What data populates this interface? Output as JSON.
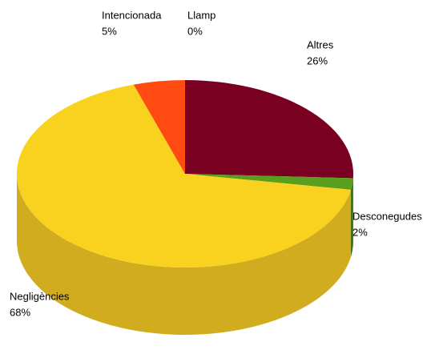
{
  "chart_data": {
    "type": "pie3d",
    "categories": [
      "Llamp",
      "Altres",
      "Desconegudes",
      "Negligències",
      "Intencionada"
    ],
    "values": [
      0,
      26,
      2,
      68,
      5
    ],
    "value_labels": [
      "0%",
      "26%",
      "2%",
      "68%",
      "5%"
    ],
    "colors": [
      "#2e3a8c",
      "#7a0022",
      "#5a9e1e",
      "#f9d11f",
      "#ff4b12"
    ],
    "side_colors": [
      "#1e2660",
      "#56001a",
      "#3f7214",
      "#d1ac1e",
      "#c83a0c"
    ]
  }
}
